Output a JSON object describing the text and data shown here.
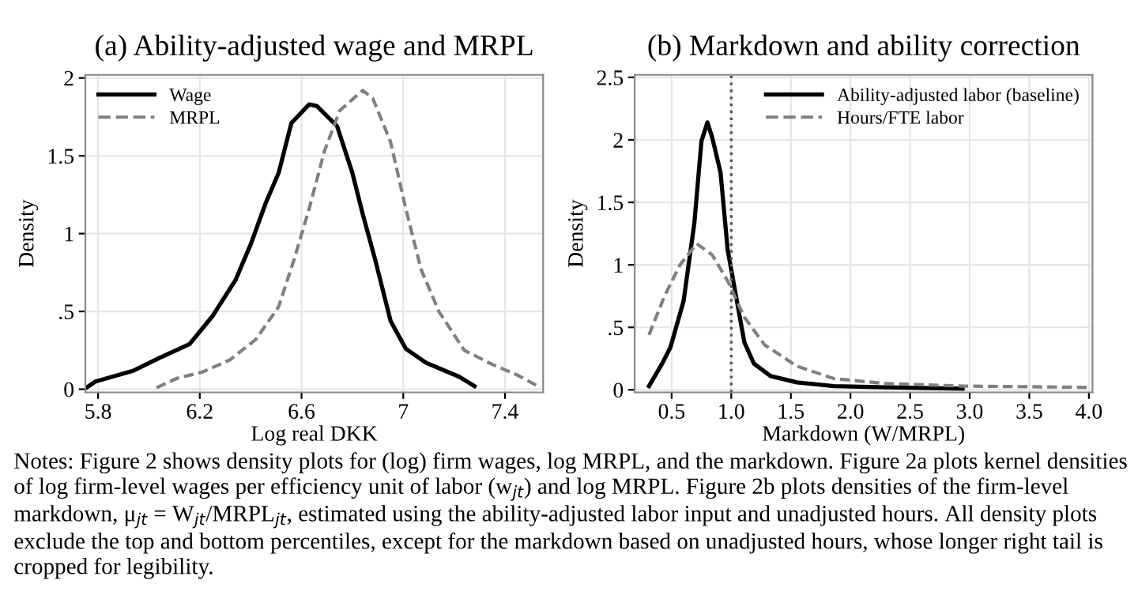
{
  "chart_data": [
    {
      "type": "line",
      "title": "(a) Ability-adjusted wage and MRPL",
      "xlabel": "Log real DKK",
      "ylabel": "Density",
      "xlim": [
        5.75,
        7.55
      ],
      "xticks": [
        5.8,
        6.2,
        6.6,
        7,
        7.4
      ],
      "ylim": [
        -0.02,
        2.02
      ],
      "yticks": [
        0,
        {
          "value": 0.5,
          "label": ".5"
        },
        1,
        1.5,
        2
      ],
      "grid": true,
      "legend": "top left",
      "marker": "none",
      "series": [
        {
          "name": "Wage",
          "color": "#000000",
          "line_style": "solid",
          "x": [
            5.754,
            5.79,
            5.94,
            6.04,
            6.16,
            6.25,
            6.34,
            6.4,
            6.46,
            6.51,
            6.56,
            6.63,
            6.66,
            6.74,
            6.8,
            6.84,
            6.89,
            6.95,
            7.01,
            7.09,
            7.22,
            7.28
          ],
          "values": [
            0.01,
            0.05,
            0.12,
            0.2,
            0.29,
            0.47,
            0.7,
            0.93,
            1.2,
            1.39,
            1.71,
            1.83,
            1.82,
            1.69,
            1.39,
            1.13,
            0.83,
            0.44,
            0.26,
            0.17,
            0.08,
            0.02
          ]
        },
        {
          "name": "MRPL",
          "color": "#808080",
          "line_style": "dashed",
          "x": [
            6.03,
            6.11,
            6.21,
            6.32,
            6.42,
            6.51,
            6.57,
            6.63,
            6.69,
            6.75,
            6.84,
            6.88,
            6.95,
            7.01,
            7.07,
            7.14,
            7.24,
            7.35,
            7.45,
            7.54
          ],
          "values": [
            0.01,
            0.07,
            0.11,
            0.19,
            0.32,
            0.53,
            0.83,
            1.16,
            1.53,
            1.79,
            1.92,
            1.87,
            1.59,
            1.16,
            0.77,
            0.5,
            0.25,
            0.16,
            0.09,
            0.01
          ]
        }
      ],
      "annotations": [
        "Notes: Figure 2 shows density plots for (log) firm wages, log MRPL, and the markdown. Figure 2a plots kernel densities of log firm-level wages per efficiency unit of labor (w$_{jt}$) and log MRPL. Figure 2b plots densities of the firm-level markdown, μ$_{jt}$ = W$_{jt}$/MRPL$_{jt}$, estimated using the ability-adjusted labor input and unadjusted hours. All density plots exclude the top and bottom percentiles, except for the markdown based on unadjusted hours, whose longer right tail is cropped for legibility."
      ]
    },
    {
      "type": "line",
      "title": "(b) Markdown and ability correction",
      "xlabel": "Markdown (W/MRPL)",
      "ylabel": "Density",
      "xlim": [
        0.19,
        4.03
      ],
      "xticks": [
        {
          "value": 0.5,
          "label": "0.5"
        },
        {
          "value": 1,
          "label": "1.0"
        },
        {
          "value": 1.5,
          "label": "1.5"
        },
        {
          "value": 2,
          "label": "2.0"
        },
        {
          "value": 2.5,
          "label": "2.5"
        },
        {
          "value": 3,
          "label": "3.0"
        },
        {
          "value": 3.5,
          "label": "3.5"
        },
        {
          "value": 4,
          "label": "4.0"
        }
      ],
      "ylim": [
        -0.02,
        2.52
      ],
      "yticks": [
        0,
        {
          "value": 0.5,
          "label": ".5"
        },
        1,
        1.5,
        2,
        2.5
      ],
      "grid": true,
      "legend": "top right",
      "marker": "none",
      "ref_lines": [
        {
          "axis": "x",
          "value": 1,
          "color": "#555555",
          "line_style": "dotted"
        }
      ],
      "series": [
        {
          "name": "Ability-adjusted labor (baseline)",
          "color": "#000000",
          "line_style": "solid",
          "x": [
            0.31,
            0.42,
            0.49,
            0.6,
            0.69,
            0.75,
            0.8,
            0.84,
            0.91,
            0.97,
            1.04,
            1.11,
            1.19,
            1.33,
            1.55,
            1.86,
            2.3,
            2.94
          ],
          "values": [
            0.03,
            0.21,
            0.34,
            0.71,
            1.33,
            1.99,
            2.14,
            2.02,
            1.74,
            1.12,
            0.75,
            0.38,
            0.21,
            0.11,
            0.06,
            0.03,
            0.02,
            0.01
          ]
        },
        {
          "name": "Hours/FTE labor",
          "color": "#808080",
          "line_style": "dashed",
          "x": [
            0.31,
            0.44,
            0.57,
            0.71,
            0.84,
            0.97,
            1.11,
            1.28,
            1.55,
            1.86,
            2.3,
            2.96,
            4.0
          ],
          "values": [
            0.44,
            0.75,
            1.0,
            1.17,
            1.08,
            0.87,
            0.58,
            0.36,
            0.19,
            0.09,
            0.05,
            0.03,
            0.02
          ]
        }
      ]
    }
  ]
}
